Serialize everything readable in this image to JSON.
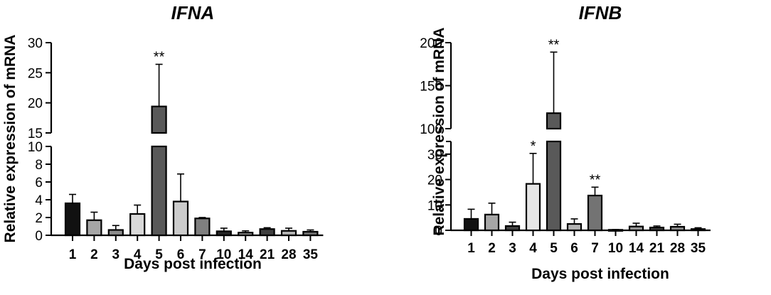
{
  "chart_data": [
    {
      "type": "bar",
      "title": "IFNA",
      "xlabel": "Days post infection",
      "ylabel": "Relative expression of mRNA",
      "categories": [
        "1",
        "2",
        "3",
        "4",
        "5",
        "6",
        "7",
        "10",
        "14",
        "21",
        "28",
        "35"
      ],
      "values": [
        3.6,
        1.7,
        0.6,
        2.4,
        19.4,
        3.8,
        1.9,
        0.45,
        0.3,
        0.7,
        0.5,
        0.4
      ],
      "errors": [
        1.0,
        0.9,
        0.5,
        1.0,
        7.0,
        3.1,
        0.1,
        0.35,
        0.2,
        0.15,
        0.3,
        0.2
      ],
      "significance": [
        "",
        "",
        "",
        "",
        "**",
        "",
        "",
        "",
        "",
        "",
        "",
        ""
      ],
      "bar_colors": [
        "#111111",
        "#a6a6a6",
        "#8c8c8c",
        "#d9d9d9",
        "#595959",
        "#cccccc",
        "#7f7f7f",
        "#262626",
        "#9a9a9a",
        "#404040",
        "#b3b3b3",
        "#737373"
      ],
      "y_broken": true,
      "y_segments": [
        {
          "range": [
            0,
            10
          ],
          "ticks": [
            0,
            2,
            4,
            6,
            8,
            10
          ]
        },
        {
          "range": [
            15,
            30
          ],
          "ticks": [
            15,
            20,
            25,
            30
          ]
        }
      ],
      "tick_labels": [
        "0",
        "2",
        "4",
        "6",
        "8",
        "10",
        "15",
        "20",
        "25",
        "30"
      ]
    },
    {
      "type": "bar",
      "title": "IFNB",
      "xlabel": "Days post infection",
      "ylabel": "Relative expression of mRNA",
      "categories": [
        "1",
        "2",
        "3",
        "4",
        "5",
        "6",
        "7",
        "10",
        "14",
        "21",
        "28",
        "35"
      ],
      "values": [
        4.5,
        6.2,
        1.7,
        18.3,
        118,
        2.5,
        13.7,
        0.2,
        1.5,
        1.1,
        1.4,
        0.5
      ],
      "errors": [
        3.8,
        4.5,
        1.5,
        12.0,
        71,
        2.0,
        3.3,
        0.1,
        1.3,
        0.6,
        1.0,
        0.5
      ],
      "significance": [
        "",
        "",
        "",
        "*",
        "**",
        "",
        "**",
        "",
        "",
        "",
        "",
        ""
      ],
      "bar_colors": [
        "#111111",
        "#a6a6a6",
        "#404040",
        "#e6e6e6",
        "#595959",
        "#b3b3b3",
        "#737373",
        "#262626",
        "#9a9a9a",
        "#404040",
        "#8c8c8c",
        "#737373"
      ],
      "y_broken": true,
      "y_segments": [
        {
          "range": [
            0,
            35
          ],
          "ticks": [
            0,
            10,
            20,
            30
          ]
        },
        {
          "range": [
            100,
            200
          ],
          "ticks": [
            100,
            150,
            200
          ]
        }
      ],
      "tick_labels": [
        "0",
        "10",
        "20",
        "30",
        "100",
        "150",
        "200"
      ]
    }
  ]
}
